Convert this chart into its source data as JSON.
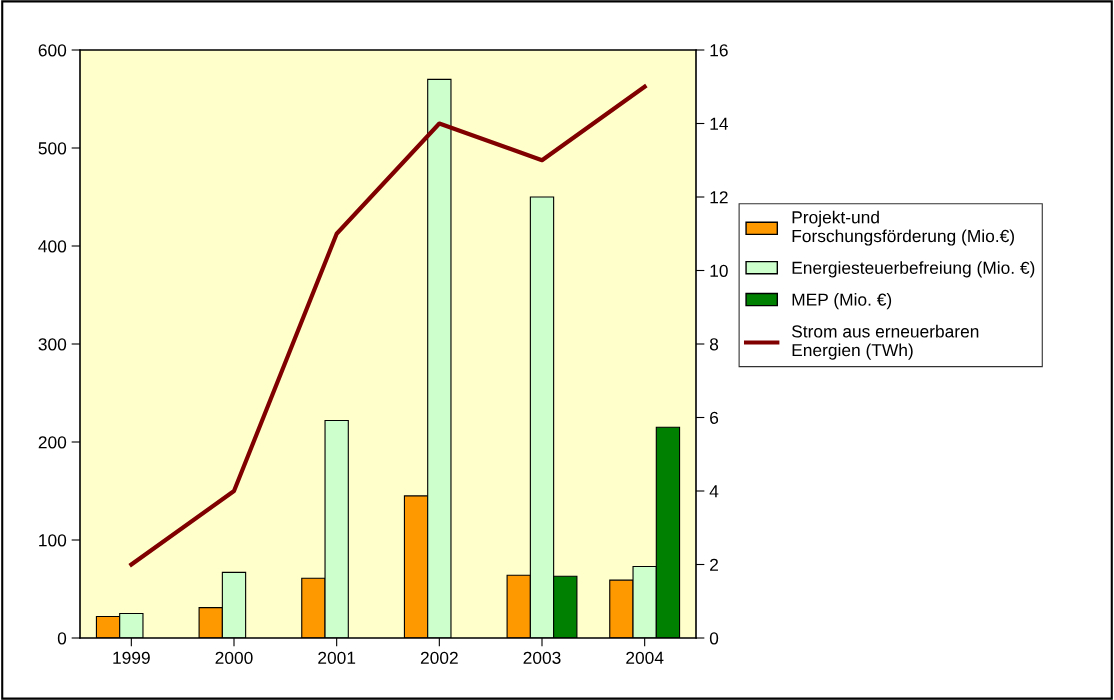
{
  "chart_data": {
    "type": "bar",
    "categories": [
      "1999",
      "2000",
      "2001",
      "2002",
      "2003",
      "2004"
    ],
    "series": [
      {
        "name": "Projekt-und\nForschungsförderung (Mio.€)",
        "color": "#ff9900",
        "values": [
          22,
          31,
          61,
          145,
          64,
          59
        ]
      },
      {
        "name": "Energiesteuerbefreiung (Mio. €)",
        "color": "#ccffcc",
        "values": [
          25,
          67,
          222,
          570,
          450,
          73
        ]
      },
      {
        "name": "MEP (Mio. €)",
        "color": "#008000",
        "values": [
          null,
          null,
          null,
          null,
          63,
          215
        ]
      },
      {
        "name": "Strom aus erneuerbaren\nEnergien (TWh)",
        "color": "#800000",
        "type": "line",
        "axis": "y2",
        "values": [
          2,
          4,
          11,
          14,
          13,
          15
        ]
      }
    ],
    "ylim": [
      0,
      600
    ],
    "yticks": [
      0,
      100,
      200,
      300,
      400,
      500,
      600
    ],
    "y2lim": [
      0,
      16
    ],
    "y2ticks": [
      0,
      2,
      4,
      6,
      8,
      10,
      12,
      14,
      16
    ],
    "grid": false,
    "legend": "right",
    "marker": "none",
    "line_style": "solid"
  }
}
